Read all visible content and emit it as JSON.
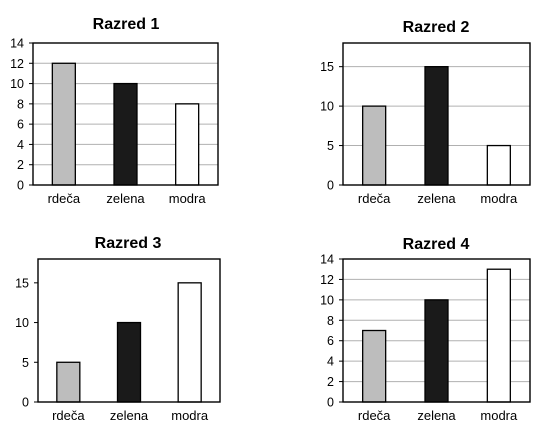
{
  "colors": {
    "gray": "#bdbdbd",
    "black": "#1a1a1a",
    "white": "#ffffff",
    "grid": "#b0b0b0"
  },
  "chart_data": [
    {
      "type": "bar",
      "title": "Razred 1",
      "categories": [
        "rdeča",
        "zelena",
        "modra"
      ],
      "values": [
        12,
        10,
        8
      ],
      "bar_colors": [
        "gray",
        "black",
        "white"
      ],
      "ylim": [
        0,
        14
      ],
      "yticks": [
        0,
        2,
        4,
        6,
        8,
        10,
        12,
        14
      ],
      "grid": true
    },
    {
      "type": "bar",
      "title": "Razred 2",
      "categories": [
        "rdeča",
        "zelena",
        "modra"
      ],
      "values": [
        10,
        15,
        5
      ],
      "bar_colors": [
        "gray",
        "black",
        "white"
      ],
      "ylim": [
        0,
        18
      ],
      "yticks": [
        0,
        5,
        10,
        15
      ],
      "grid": true
    },
    {
      "type": "bar",
      "title": "Razred 3",
      "categories": [
        "rdeča",
        "zelena",
        "modra"
      ],
      "values": [
        5,
        10,
        15
      ],
      "bar_colors": [
        "gray",
        "black",
        "white"
      ],
      "ylim": [
        0,
        18
      ],
      "yticks": [
        0,
        5,
        10,
        15
      ],
      "grid": false
    },
    {
      "type": "bar",
      "title": "Razred 4",
      "categories": [
        "rdeča",
        "zelena",
        "modra"
      ],
      "values": [
        7,
        10,
        13
      ],
      "bar_colors": [
        "gray",
        "black",
        "white"
      ],
      "ylim": [
        0,
        14
      ],
      "yticks": [
        0,
        2,
        4,
        6,
        8,
        10,
        12,
        14
      ],
      "grid": true
    }
  ]
}
